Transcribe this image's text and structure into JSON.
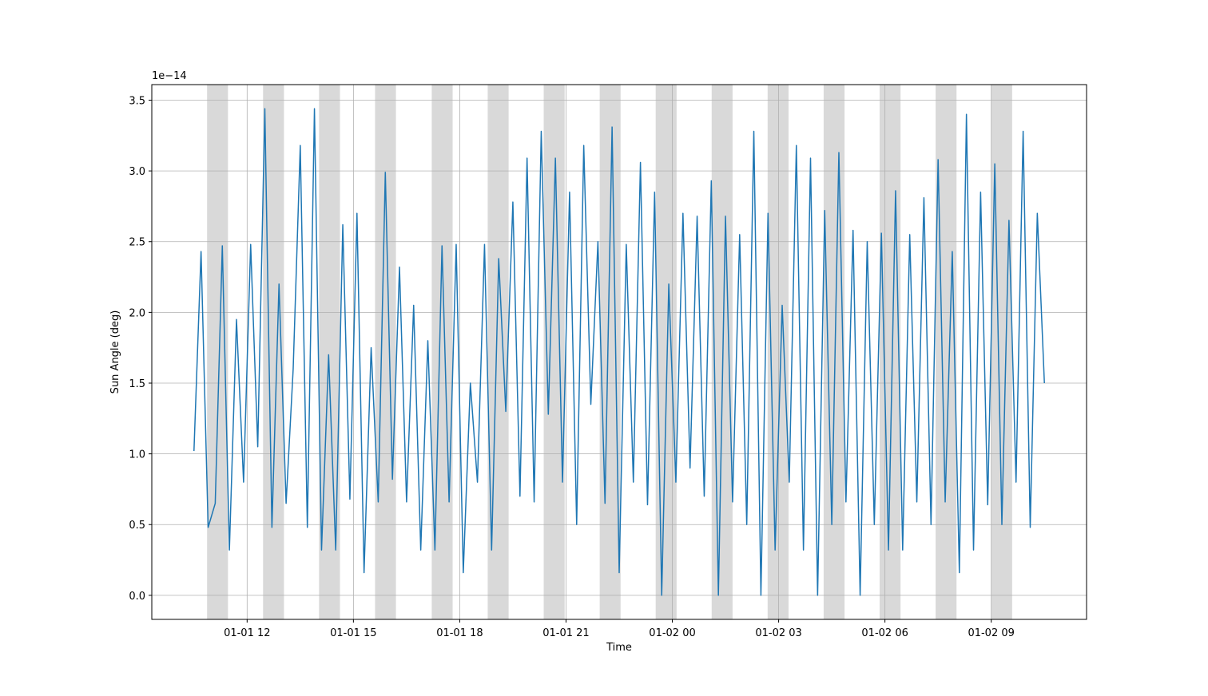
{
  "chart_data": {
    "type": "line",
    "xlabel": "Time",
    "ylabel": "Sun Angle (deg)",
    "y_offset_label": "1e−14",
    "x": [
      10.5,
      10.7,
      10.9,
      11.1,
      11.3,
      11.5,
      11.7,
      11.9,
      12.1,
      12.3,
      12.5,
      12.7,
      12.9,
      13.1,
      13.3,
      13.5,
      13.7,
      13.9,
      14.1,
      14.3,
      14.5,
      14.7,
      14.9,
      15.1,
      15.3,
      15.5,
      15.7,
      15.9,
      16.1,
      16.3,
      16.5,
      16.7,
      16.9,
      17.1,
      17.3,
      17.5,
      17.7,
      17.9,
      18.1,
      18.3,
      18.5,
      18.7,
      18.9,
      19.1,
      19.3,
      19.5,
      19.7,
      19.9,
      20.1,
      20.3,
      20.5,
      20.7,
      20.9,
      21.1,
      21.3,
      21.5,
      21.7,
      21.9,
      22.1,
      22.3,
      22.5,
      22.7,
      22.9,
      23.1,
      23.3,
      23.5,
      23.7,
      23.9,
      24.1,
      24.3,
      24.5,
      24.7,
      24.9,
      25.1,
      25.3,
      25.5,
      25.7,
      25.9,
      26.1,
      26.3,
      26.5,
      26.7,
      26.9,
      27.1,
      27.3,
      27.5,
      27.7,
      27.9,
      28.1,
      28.3,
      28.5,
      28.7,
      28.9,
      29.1,
      29.3,
      29.5,
      29.7,
      29.9,
      30.1,
      30.3,
      30.5,
      30.7,
      30.9,
      31.1,
      31.3,
      31.5,
      31.7,
      31.9,
      32.1,
      32.3,
      32.5,
      32.7,
      32.9,
      33.1,
      33.3,
      33.5,
      33.7,
      33.9,
      34.1,
      34.3,
      34.5
    ],
    "series": [
      {
        "color": "#1f77b4",
        "values": [
          1.02,
          2.43,
          0.48,
          0.65,
          2.47,
          0.32,
          1.95,
          0.8,
          2.48,
          1.05,
          3.44,
          0.48,
          2.2,
          0.65,
          1.6,
          3.18,
          0.48,
          3.44,
          0.32,
          1.7,
          0.32,
          2.62,
          0.68,
          2.7,
          0.16,
          1.75,
          0.66,
          2.99,
          0.82,
          2.32,
          0.66,
          2.05,
          0.32,
          1.8,
          0.32,
          2.47,
          0.66,
          2.48,
          0.16,
          1.5,
          0.8,
          2.48,
          0.32,
          2.38,
          1.3,
          2.78,
          0.7,
          3.09,
          0.66,
          3.28,
          1.28,
          3.09,
          0.8,
          2.85,
          0.5,
          3.18,
          1.35,
          2.5,
          0.65,
          3.31,
          0.16,
          2.48,
          0.8,
          3.06,
          0.64,
          2.85,
          0.0,
          2.2,
          0.8,
          2.7,
          0.9,
          2.68,
          0.7,
          2.93,
          0.0,
          2.68,
          0.66,
          2.55,
          0.5,
          3.28,
          0.0,
          2.7,
          0.32,
          2.05,
          0.8,
          3.18,
          0.32,
          3.09,
          0.0,
          2.72,
          0.5,
          3.13,
          0.66,
          2.58,
          0.0,
          2.5,
          0.5,
          2.56,
          0.32,
          2.86,
          0.32,
          2.55,
          0.66,
          2.81,
          0.5,
          3.08,
          0.66,
          2.43,
          0.16,
          3.4,
          0.32,
          2.85,
          0.64,
          3.05,
          0.5,
          2.65,
          0.8,
          3.28,
          0.48,
          2.7,
          1.5
        ]
      }
    ],
    "spans": [
      [
        10.87,
        11.46
      ],
      [
        12.45,
        13.04
      ],
      [
        14.03,
        14.62
      ],
      [
        15.61,
        16.2
      ],
      [
        17.21,
        17.8
      ],
      [
        18.79,
        19.38
      ],
      [
        20.37,
        20.96
      ],
      [
        21.95,
        22.54
      ],
      [
        23.53,
        24.12
      ],
      [
        25.11,
        25.7
      ],
      [
        26.69,
        27.28
      ],
      [
        28.27,
        28.86
      ],
      [
        29.85,
        30.44
      ],
      [
        31.43,
        32.02
      ],
      [
        33.0,
        33.59
      ]
    ],
    "span_color": "#d9d9d9",
    "xlim": [
      9.31,
      35.69
    ],
    "ylim": [
      -0.17,
      3.61
    ],
    "xticks": [
      {
        "value": 12,
        "label": "01-01 12"
      },
      {
        "value": 15,
        "label": "01-01 15"
      },
      {
        "value": 18,
        "label": "01-01 18"
      },
      {
        "value": 21,
        "label": "01-01 21"
      },
      {
        "value": 24,
        "label": "01-02 00"
      },
      {
        "value": 27,
        "label": "01-02 03"
      },
      {
        "value": 30,
        "label": "01-02 06"
      },
      {
        "value": 33,
        "label": "01-02 09"
      }
    ],
    "yticks": [
      {
        "value": 0,
        "label": "0.0"
      },
      {
        "value": 0.5,
        "label": "0.5"
      },
      {
        "value": 1,
        "label": "1.0"
      },
      {
        "value": 1.5,
        "label": "1.5"
      },
      {
        "value": 2,
        "label": "2.0"
      },
      {
        "value": 2.5,
        "label": "2.5"
      },
      {
        "value": 3,
        "label": "3.0"
      },
      {
        "value": 3.5,
        "label": "3.5"
      }
    ],
    "grid": true
  }
}
